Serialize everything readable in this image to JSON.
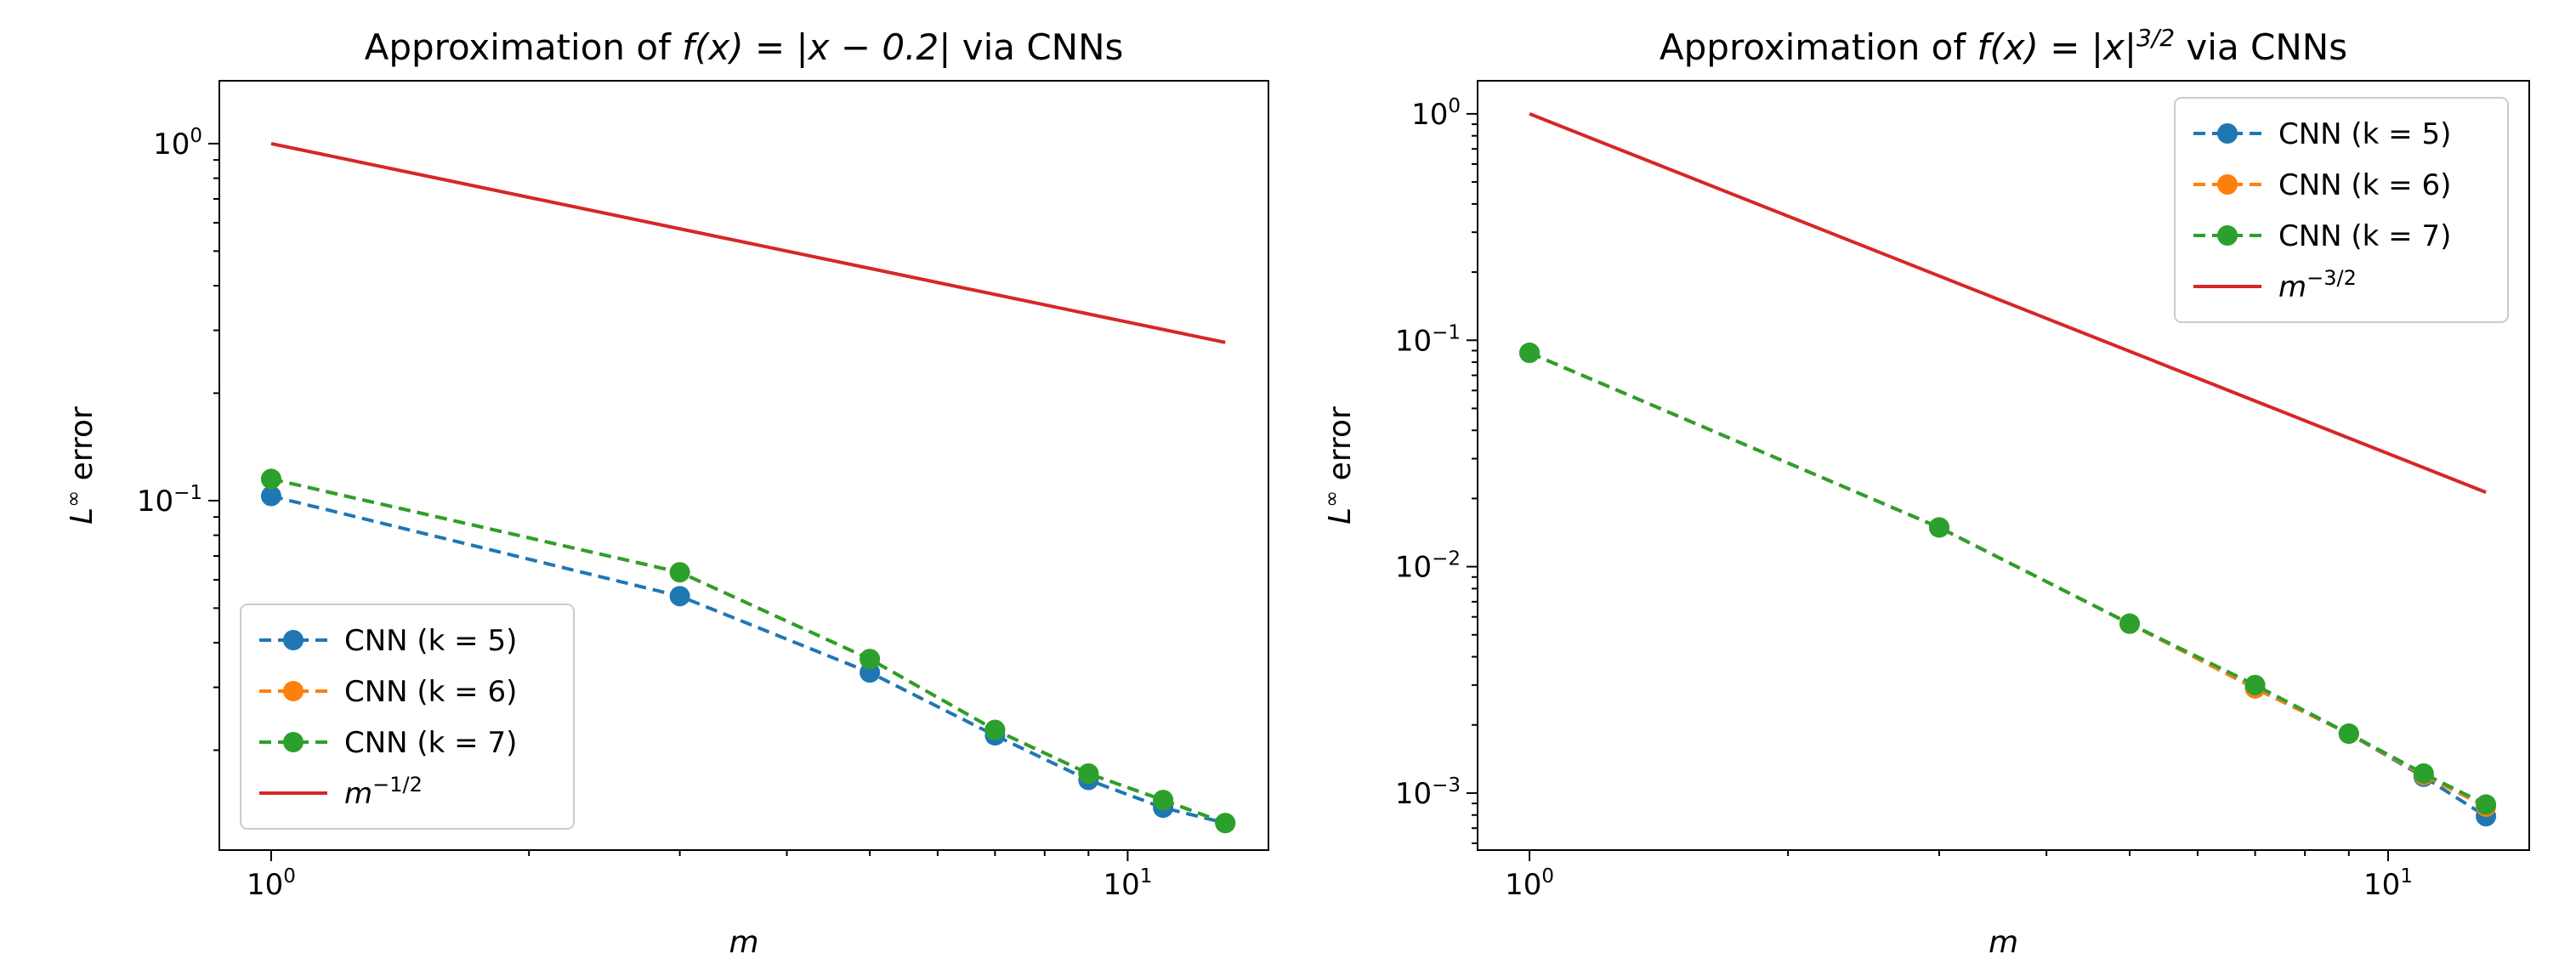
{
  "chart_data": [
    {
      "type": "line",
      "title_prefix": "Approximation of ",
      "title_math": "f(x) = |x − 0.2|",
      "title_suffix": " via CNNs",
      "xlabel": "m",
      "ylabel_base": "L",
      "ylabel_sup": "∞",
      "ylabel_rest": " error",
      "xscale": "log",
      "yscale": "log",
      "xlim": [
        0.87,
        14.6
      ],
      "ylim": [
        0.0105,
        1.5
      ],
      "xticks": [
        {
          "value": 1,
          "base": "10",
          "exp": "0"
        },
        {
          "value": 10,
          "base": "10",
          "exp": "1"
        }
      ],
      "yticks": [
        {
          "value": 1,
          "base": "10",
          "exp": "0"
        },
        {
          "value": 0.1,
          "base": "10",
          "exp": "−1"
        }
      ],
      "legend_location": "lower-left",
      "series": [
        {
          "name": "CNN (k = 5)",
          "color": "#1f77b4",
          "style": "dashed-marker",
          "x": [
            1,
            3,
            5,
            7,
            9,
            11,
            13
          ],
          "y": [
            0.103,
            0.054,
            0.033,
            0.022,
            0.0165,
            0.0138,
            0.0125
          ]
        },
        {
          "name": "CNN (k = 6)",
          "color": "#ff7f0e",
          "style": "dashed-marker",
          "x": [
            1,
            3,
            5,
            7,
            9,
            11,
            13
          ],
          "y": [
            0.115,
            0.063,
            0.036,
            0.0228,
            0.0172,
            0.0145,
            0.0125
          ]
        },
        {
          "name": "CNN (k = 7)",
          "color": "#2ca02c",
          "style": "dashed-marker",
          "x": [
            1,
            3,
            5,
            7,
            9,
            11,
            13
          ],
          "y": [
            0.115,
            0.063,
            0.036,
            0.0228,
            0.0172,
            0.0145,
            0.0125
          ]
        },
        {
          "name_base": "m",
          "name_sup": "−1/2",
          "color": "#d62728",
          "style": "solid",
          "x": [
            1,
            13
          ],
          "y": [
            1.0,
            0.2774
          ]
        }
      ]
    },
    {
      "type": "line",
      "title_prefix": "Approximation of ",
      "title_math": "f(x) = |x|",
      "title_math_sup": "3/2",
      "title_suffix": " via CNNs",
      "xlabel": "m",
      "ylabel_base": "L",
      "ylabel_sup": "∞",
      "ylabel_rest": " error",
      "xscale": "log",
      "yscale": "log",
      "xlim": [
        0.87,
        14.6
      ],
      "ylim": [
        0.00056,
        1.4
      ],
      "xticks": [
        {
          "value": 1,
          "base": "10",
          "exp": "0"
        },
        {
          "value": 10,
          "base": "10",
          "exp": "1"
        }
      ],
      "yticks": [
        {
          "value": 1,
          "base": "10",
          "exp": "0"
        },
        {
          "value": 0.1,
          "base": "10",
          "exp": "−1"
        },
        {
          "value": 0.01,
          "base": "10",
          "exp": "−2"
        },
        {
          "value": 0.001,
          "base": "10",
          "exp": "−3"
        }
      ],
      "legend_location": "upper-right",
      "series": [
        {
          "name": "CNN (k = 5)",
          "color": "#1f77b4",
          "style": "dashed-marker",
          "x": [
            1,
            3,
            5,
            7,
            9,
            11,
            13
          ],
          "y": [
            0.088,
            0.0149,
            0.0056,
            0.0029,
            0.00183,
            0.00118,
            0.00079
          ]
        },
        {
          "name": "CNN (k = 6)",
          "color": "#ff7f0e",
          "style": "dashed-marker",
          "x": [
            1,
            3,
            5,
            7,
            9,
            11,
            13
          ],
          "y": [
            0.088,
            0.0149,
            0.0056,
            0.0029,
            0.00183,
            0.0012,
            0.00087
          ]
        },
        {
          "name": "CNN (k = 7)",
          "color": "#2ca02c",
          "style": "dashed-marker",
          "x": [
            1,
            3,
            5,
            7,
            9,
            11,
            13
          ],
          "y": [
            0.088,
            0.0149,
            0.0056,
            0.003,
            0.00183,
            0.00122,
            0.00089
          ]
        },
        {
          "name_base": "m",
          "name_sup": "−3/2",
          "color": "#d62728",
          "style": "solid",
          "x": [
            1,
            13
          ],
          "y": [
            1.0,
            0.0213
          ]
        }
      ]
    }
  ]
}
